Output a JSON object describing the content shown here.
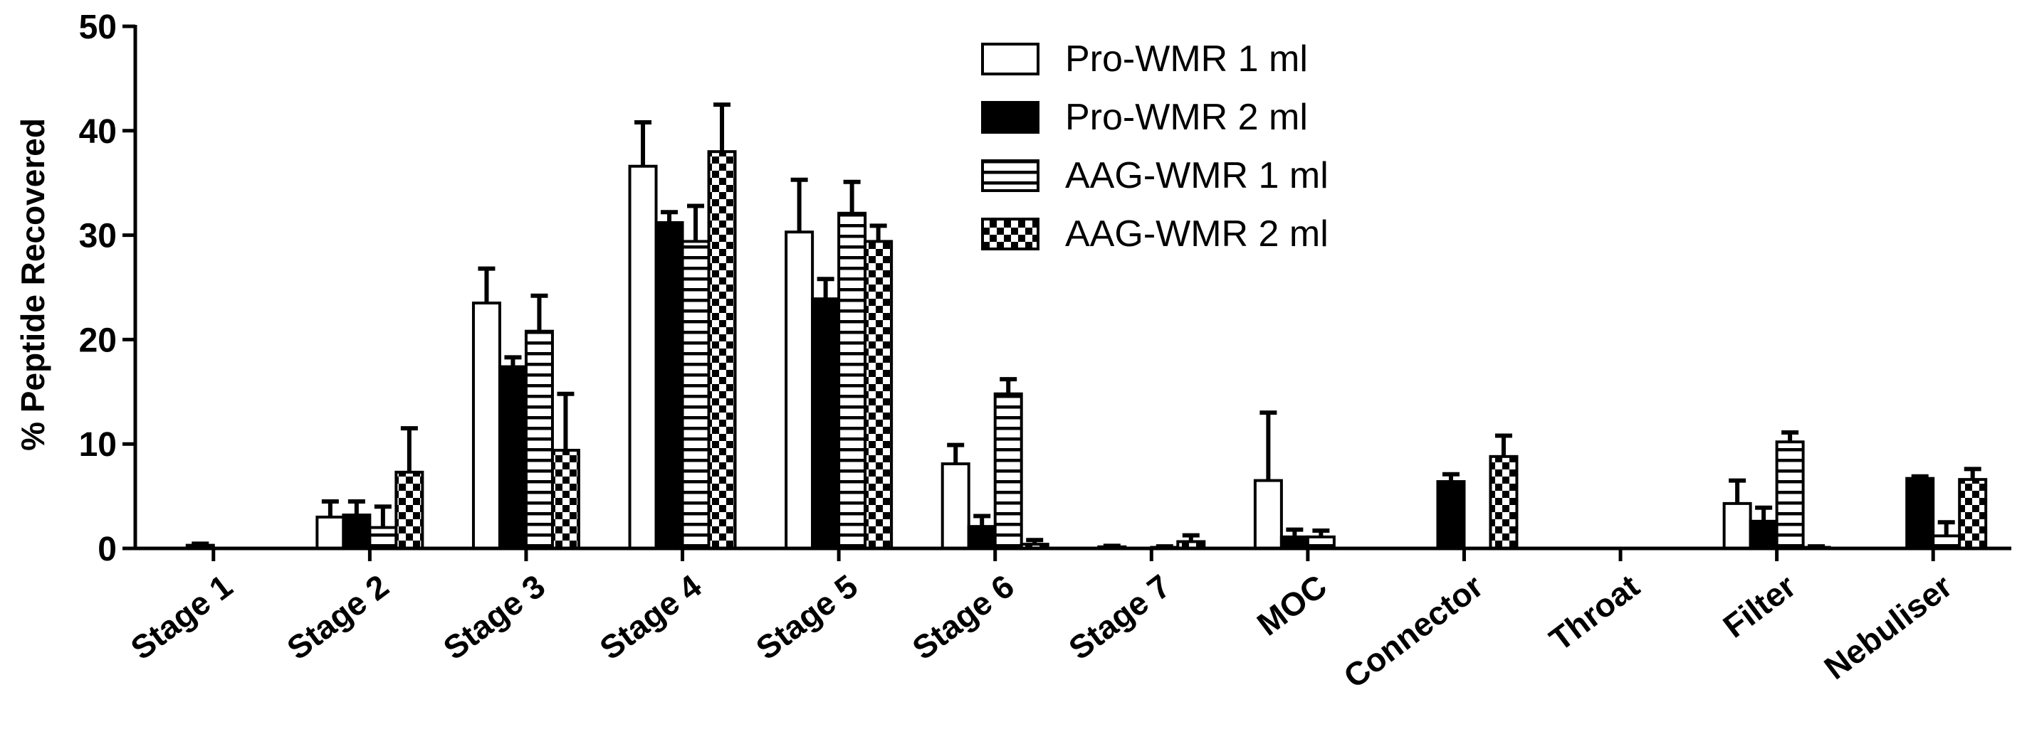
{
  "chart_data": {
    "type": "bar",
    "title": "",
    "xlabel": "",
    "ylabel": "% Peptide Recovered",
    "ylim": [
      0,
      50
    ],
    "yticks": [
      0,
      10,
      20,
      30,
      40,
      50
    ],
    "grid": false,
    "legend_position": "top-center",
    "categories": [
      "Stage 1",
      "Stage 2",
      "Stage 3",
      "Stage 4",
      "Stage 5",
      "Stage 6",
      "Stage 7",
      "MOC",
      "Connector",
      "Throat",
      "Filter",
      "Nebuliser"
    ],
    "series": [
      {
        "name": "Pro-WMR 1 ml",
        "pattern": "open",
        "values": [
          0,
          3.0,
          23.5,
          36.6,
          30.3,
          8.1,
          0.15,
          6.5,
          0,
          0,
          4.3,
          0
        ],
        "errors": [
          0,
          1.5,
          3.3,
          4.2,
          5.0,
          1.8,
          0.1,
          6.5,
          0,
          0,
          2.2,
          0
        ]
      },
      {
        "name": "Pro-WMR 2 ml",
        "pattern": "solid",
        "values": [
          0.3,
          3.2,
          17.4,
          31.2,
          23.9,
          2.1,
          0,
          1.1,
          6.4,
          0,
          2.6,
          6.7
        ],
        "errors": [
          0.15,
          1.3,
          0.9,
          1.0,
          1.9,
          1.0,
          0,
          0.7,
          0.7,
          0,
          1.3,
          0.2
        ]
      },
      {
        "name": "AAG-WMR 1 ml",
        "pattern": "horizontal-stripes",
        "values": [
          0,
          2.0,
          20.8,
          29.4,
          32.1,
          14.8,
          0.1,
          1.1,
          0,
          0,
          10.2,
          1.2
        ],
        "errors": [
          0,
          2.0,
          3.4,
          3.4,
          3.0,
          1.4,
          0.1,
          0.6,
          0,
          0,
          0.9,
          1.3
        ]
      },
      {
        "name": "AAG-WMR 2 ml",
        "pattern": "checkered",
        "values": [
          0,
          7.3,
          9.4,
          38.0,
          29.4,
          0.4,
          0.65,
          0,
          8.8,
          0,
          0.1,
          6.6
        ],
        "errors": [
          0,
          4.2,
          5.4,
          4.5,
          1.5,
          0.4,
          0.6,
          0,
          2.0,
          0,
          0.1,
          1.0
        ]
      }
    ]
  }
}
